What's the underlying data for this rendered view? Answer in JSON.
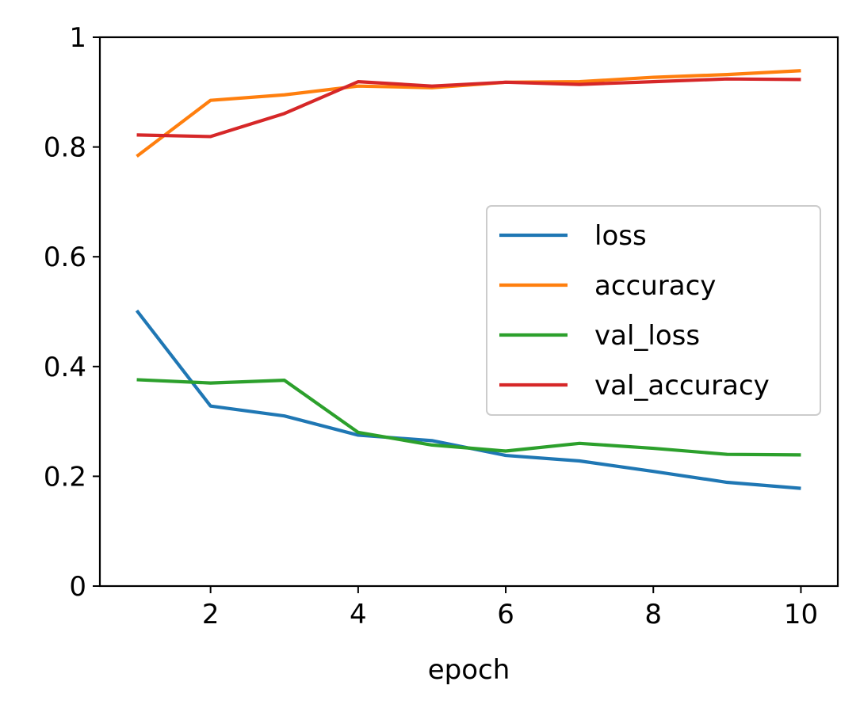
{
  "chart_data": {
    "type": "line",
    "xlabel": "epoch",
    "ylabel": "",
    "xlim": [
      0.5,
      10.5
    ],
    "ylim": [
      0,
      1
    ],
    "x": [
      1,
      2,
      3,
      4,
      5,
      6,
      7,
      8,
      9,
      10
    ],
    "x_ticks": [
      2,
      4,
      6,
      8,
      10
    ],
    "x_tick_labels": [
      "2",
      "4",
      "6",
      "8",
      "10"
    ],
    "y_ticks": [
      0,
      0.2,
      0.4,
      0.6,
      0.8,
      1
    ],
    "y_tick_labels": [
      "0",
      "0.2",
      "0.4",
      "0.6",
      "0.8",
      "1"
    ],
    "grid": false,
    "legend_position": "center-right",
    "series": [
      {
        "name": "loss",
        "color": "#1f77b4",
        "values": [
          0.502,
          0.328,
          0.31,
          0.275,
          0.265,
          0.238,
          0.228,
          0.209,
          0.189,
          0.178
        ]
      },
      {
        "name": "accuracy",
        "color": "#ff7f0e",
        "values": [
          0.783,
          0.885,
          0.895,
          0.911,
          0.908,
          0.918,
          0.919,
          0.927,
          0.932,
          0.939
        ]
      },
      {
        "name": "val_loss",
        "color": "#2ca02c",
        "values": [
          0.376,
          0.37,
          0.375,
          0.28,
          0.257,
          0.246,
          0.26,
          0.251,
          0.24,
          0.239
        ]
      },
      {
        "name": "val_accuracy",
        "color": "#d62728",
        "values": [
          0.822,
          0.819,
          0.861,
          0.919,
          0.911,
          0.918,
          0.914,
          0.919,
          0.924,
          0.923
        ]
      }
    ]
  }
}
